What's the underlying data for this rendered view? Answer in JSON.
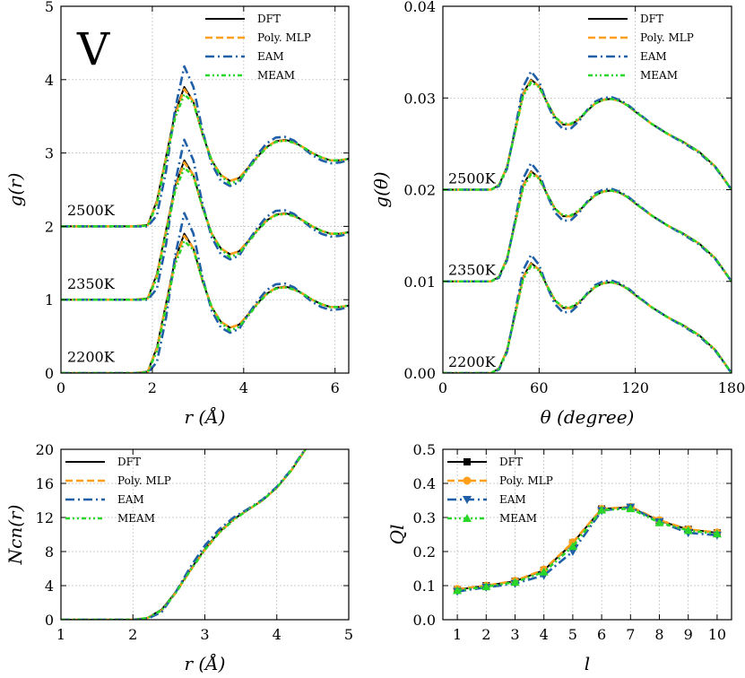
{
  "figure_label": "V",
  "series_styles": [
    {
      "name": "DFT",
      "color": "#000000",
      "dash": "",
      "width": 2.0
    },
    {
      "name": "Poly. MLP",
      "color": "#ff9f1c",
      "dash": "8,4",
      "width": 2.6
    },
    {
      "name": "EAM",
      "color": "#1f5fa8",
      "dash": "10,4,2,4",
      "width": 2.6
    },
    {
      "name": "MEAM",
      "color": "#2bd62b",
      "dash": "5,3,2,3,2,3",
      "width": 2.6
    }
  ],
  "chart_data": [
    {
      "id": "rdf",
      "type": "line",
      "title": "",
      "xlabel": "r (Å)",
      "ylabel": "g(r)",
      "xlim": [
        0,
        6.3
      ],
      "ylim": [
        0,
        5
      ],
      "xticks": [
        "0",
        "2",
        "4",
        "6"
      ],
      "xtick_values": [
        0,
        2,
        4,
        6
      ],
      "yticks": [
        "0",
        "1",
        "2",
        "3",
        "4",
        "5"
      ],
      "ytick_values": [
        0,
        1,
        2,
        3,
        4,
        5
      ],
      "legend": [
        "DFT",
        "Poly. MLP",
        "EAM",
        "MEAM"
      ],
      "legend_position": "top-right",
      "annotations": [
        "2500K",
        "2350K",
        "2200K"
      ],
      "offsets": [
        2,
        1,
        0
      ],
      "series": [
        {
          "name": "DFT",
          "x": [
            0,
            1.6,
            1.9,
            2.1,
            2.3,
            2.5,
            2.7,
            2.9,
            3.1,
            3.3,
            3.5,
            3.7,
            3.9,
            4.1,
            4.3,
            4.5,
            4.7,
            4.9,
            5.1,
            5.3,
            5.5,
            5.7,
            5.9,
            6.1,
            6.3
          ],
          "y": [
            0,
            0,
            0.02,
            0.35,
            0.95,
            1.55,
            1.9,
            1.7,
            1.25,
            0.9,
            0.7,
            0.62,
            0.66,
            0.8,
            0.95,
            1.08,
            1.16,
            1.18,
            1.15,
            1.08,
            1.0,
            0.94,
            0.9,
            0.9,
            0.92
          ]
        },
        {
          "name": "Poly. MLP",
          "x": [
            0,
            1.6,
            1.9,
            2.1,
            2.3,
            2.5,
            2.7,
            2.9,
            3.1,
            3.3,
            3.5,
            3.7,
            3.9,
            4.1,
            4.3,
            4.5,
            4.7,
            4.9,
            5.1,
            5.3,
            5.5,
            5.7,
            5.9,
            6.1,
            6.3
          ],
          "y": [
            0,
            0,
            0.02,
            0.33,
            0.93,
            1.52,
            1.87,
            1.7,
            1.26,
            0.9,
            0.7,
            0.62,
            0.66,
            0.8,
            0.95,
            1.08,
            1.16,
            1.17,
            1.14,
            1.08,
            1.0,
            0.94,
            0.9,
            0.9,
            0.92
          ]
        },
        {
          "name": "EAM",
          "x": [
            0,
            1.6,
            1.9,
            2.1,
            2.3,
            2.5,
            2.7,
            2.9,
            3.1,
            3.3,
            3.5,
            3.7,
            3.9,
            4.1,
            4.3,
            4.5,
            4.7,
            4.9,
            5.1,
            5.3,
            5.5,
            5.7,
            5.9,
            6.1,
            6.3
          ],
          "y": [
            0,
            0,
            0.0,
            0.15,
            0.75,
            1.6,
            2.18,
            1.9,
            1.3,
            0.85,
            0.62,
            0.55,
            0.6,
            0.8,
            0.98,
            1.13,
            1.21,
            1.22,
            1.17,
            1.07,
            0.97,
            0.9,
            0.86,
            0.87,
            0.9
          ]
        },
        {
          "name": "MEAM",
          "x": [
            0,
            1.6,
            1.9,
            2.1,
            2.3,
            2.5,
            2.7,
            2.9,
            3.1,
            3.3,
            3.5,
            3.7,
            3.9,
            4.1,
            4.3,
            4.5,
            4.7,
            4.9,
            5.1,
            5.3,
            5.5,
            5.7,
            5.9,
            6.1,
            6.3
          ],
          "y": [
            0,
            0,
            0.01,
            0.3,
            0.9,
            1.48,
            1.8,
            1.68,
            1.26,
            0.9,
            0.69,
            0.58,
            0.63,
            0.78,
            0.94,
            1.07,
            1.15,
            1.17,
            1.14,
            1.08,
            1.0,
            0.94,
            0.9,
            0.9,
            0.92
          ]
        }
      ]
    },
    {
      "id": "adf",
      "type": "line",
      "title": "",
      "xlabel": "θ (degree)",
      "ylabel": "g(θ)",
      "xlim": [
        0,
        180
      ],
      "ylim": [
        0,
        0.04
      ],
      "xticks": [
        "0",
        "60",
        "120",
        "180"
      ],
      "xtick_values": [
        0,
        60,
        120,
        180
      ],
      "yticks": [
        "0.00",
        "0.01",
        "0.02",
        "0.03",
        "0.04"
      ],
      "ytick_values": [
        0,
        0.01,
        0.02,
        0.03,
        0.04
      ],
      "legend": [
        "DFT",
        "Poly. MLP",
        "EAM",
        "MEAM"
      ],
      "legend_position": "top-right",
      "annotations": [
        "2500K",
        "2350K",
        "2200K"
      ],
      "offsets": [
        0.02,
        0.01,
        0
      ],
      "series": [
        {
          "name": "DFT",
          "x": [
            0,
            30,
            35,
            40,
            45,
            50,
            55,
            60,
            65,
            70,
            75,
            80,
            85,
            90,
            95,
            100,
            105,
            110,
            115,
            120,
            130,
            140,
            150,
            160,
            170,
            180
          ],
          "y": [
            0,
            0,
            0.0005,
            0.0025,
            0.0065,
            0.0105,
            0.012,
            0.0113,
            0.0095,
            0.0079,
            0.0071,
            0.0071,
            0.0077,
            0.0086,
            0.0094,
            0.0098,
            0.0099,
            0.0097,
            0.0092,
            0.0085,
            0.0072,
            0.0061,
            0.0052,
            0.0041,
            0.0025,
            0.0
          ]
        },
        {
          "name": "Poly. MLP",
          "x": [
            0,
            30,
            35,
            40,
            45,
            50,
            55,
            60,
            65,
            70,
            75,
            80,
            85,
            90,
            95,
            100,
            105,
            110,
            115,
            120,
            130,
            140,
            150,
            160,
            170,
            180
          ],
          "y": [
            0,
            0,
            0.0005,
            0.0025,
            0.0064,
            0.0104,
            0.0119,
            0.0113,
            0.0095,
            0.0079,
            0.0071,
            0.0071,
            0.0077,
            0.0086,
            0.0094,
            0.0098,
            0.0099,
            0.0097,
            0.0092,
            0.0085,
            0.0072,
            0.0061,
            0.0052,
            0.0041,
            0.0025,
            0.0
          ]
        },
        {
          "name": "EAM",
          "x": [
            0,
            30,
            35,
            40,
            45,
            50,
            55,
            60,
            65,
            70,
            75,
            80,
            85,
            90,
            95,
            100,
            105,
            110,
            115,
            120,
            130,
            140,
            150,
            160,
            170,
            180
          ],
          "y": [
            0,
            0,
            0.0004,
            0.0023,
            0.0066,
            0.0112,
            0.0129,
            0.0118,
            0.0094,
            0.0075,
            0.0066,
            0.0067,
            0.0075,
            0.0087,
            0.0096,
            0.01,
            0.0101,
            0.0098,
            0.0093,
            0.0086,
            0.0072,
            0.0061,
            0.0051,
            0.004,
            0.0024,
            0.0
          ]
        },
        {
          "name": "MEAM",
          "x": [
            0,
            30,
            35,
            40,
            45,
            50,
            55,
            60,
            65,
            70,
            75,
            80,
            85,
            90,
            95,
            100,
            105,
            110,
            115,
            120,
            130,
            140,
            150,
            160,
            170,
            180
          ],
          "y": [
            0,
            0,
            0.0005,
            0.0024,
            0.0063,
            0.0102,
            0.0117,
            0.0112,
            0.0095,
            0.0079,
            0.0072,
            0.0072,
            0.0078,
            0.0086,
            0.0094,
            0.0098,
            0.0099,
            0.0097,
            0.0092,
            0.0085,
            0.0072,
            0.0061,
            0.0052,
            0.0041,
            0.0025,
            0.0
          ]
        }
      ]
    },
    {
      "id": "ncn",
      "type": "line",
      "title": "",
      "xlabel": "r (Å)",
      "ylabel": "Ncn(r)",
      "xlim": [
        1,
        5
      ],
      "ylim": [
        0,
        20
      ],
      "xticks": [
        "1",
        "2",
        "3",
        "4",
        "5"
      ],
      "xtick_values": [
        1,
        2,
        3,
        4,
        5
      ],
      "yticks": [
        "0",
        "4",
        "8",
        "12",
        "16",
        "20"
      ],
      "ytick_values": [
        0,
        4,
        8,
        12,
        16,
        20
      ],
      "legend": [
        "DFT",
        "Poly. MLP",
        "EAM",
        "MEAM"
      ],
      "legend_position": "top-left",
      "series": [
        {
          "name": "DFT",
          "x": [
            1,
            2.0,
            2.2,
            2.4,
            2.6,
            2.8,
            3.0,
            3.2,
            3.4,
            3.6,
            3.8,
            4.0,
            4.2,
            4.4
          ],
          "y": [
            0,
            0,
            0.2,
            1.2,
            3.3,
            5.9,
            8.3,
            10.3,
            11.8,
            12.9,
            14.0,
            15.5,
            17.5,
            20.0
          ]
        },
        {
          "name": "Poly. MLP",
          "x": [
            1,
            2.0,
            2.2,
            2.4,
            2.6,
            2.8,
            3.0,
            3.2,
            3.4,
            3.6,
            3.8,
            4.0,
            4.2,
            4.4
          ],
          "y": [
            0,
            0,
            0.2,
            1.1,
            3.2,
            5.8,
            8.2,
            10.2,
            11.8,
            12.9,
            14.0,
            15.5,
            17.5,
            20.0
          ]
        },
        {
          "name": "EAM",
          "x": [
            1,
            2.0,
            2.2,
            2.4,
            2.6,
            2.8,
            3.0,
            3.2,
            3.4,
            3.6,
            3.8,
            4.0,
            4.2,
            4.4
          ],
          "y": [
            0,
            0,
            0.1,
            0.9,
            3.3,
            6.2,
            8.7,
            10.6,
            12.0,
            13.0,
            14.1,
            15.6,
            17.6,
            20.1
          ]
        },
        {
          "name": "MEAM",
          "x": [
            1,
            2.0,
            2.2,
            2.4,
            2.6,
            2.8,
            3.0,
            3.2,
            3.4,
            3.6,
            3.8,
            4.0,
            4.2,
            4.4
          ],
          "y": [
            0,
            0,
            0.2,
            1.1,
            3.2,
            5.8,
            8.2,
            10.2,
            11.7,
            12.9,
            14.0,
            15.5,
            17.5,
            20.0
          ]
        }
      ]
    },
    {
      "id": "ql",
      "type": "line",
      "title": "",
      "xlabel": "l",
      "ylabel": "Ql",
      "xlim": [
        0.5,
        10.5
      ],
      "ylim": [
        0,
        0.5
      ],
      "xticks": [
        "1",
        "2",
        "3",
        "4",
        "5",
        "6",
        "7",
        "8",
        "9",
        "10"
      ],
      "xtick_values": [
        1,
        2,
        3,
        4,
        5,
        6,
        7,
        8,
        9,
        10
      ],
      "yticks": [
        "0.0",
        "0.1",
        "0.2",
        "0.3",
        "0.4",
        "0.5"
      ],
      "ytick_values": [
        0,
        0.1,
        0.2,
        0.3,
        0.4,
        0.5
      ],
      "legend": [
        "DFT",
        "Poly. MLP",
        "EAM",
        "MEAM"
      ],
      "legend_position": "top-left",
      "markers": [
        "square",
        "circle",
        "triangle-down",
        "triangle-up"
      ],
      "series": [
        {
          "name": "DFT",
          "x": [
            1,
            2,
            3,
            4,
            5,
            6,
            7,
            8,
            9,
            10
          ],
          "y": [
            0.088,
            0.1,
            0.113,
            0.145,
            0.225,
            0.325,
            0.33,
            0.29,
            0.265,
            0.255
          ]
        },
        {
          "name": "Poly. MLP",
          "x": [
            1,
            2,
            3,
            4,
            5,
            6,
            7,
            8,
            9,
            10
          ],
          "y": [
            0.09,
            0.1,
            0.114,
            0.147,
            0.227,
            0.325,
            0.331,
            0.292,
            0.265,
            0.256
          ]
        },
        {
          "name": "EAM",
          "x": [
            1,
            2,
            3,
            4,
            5,
            6,
            7,
            8,
            9,
            10
          ],
          "y": [
            0.083,
            0.095,
            0.106,
            0.13,
            0.2,
            0.32,
            0.33,
            0.287,
            0.255,
            0.248
          ]
        },
        {
          "name": "MEAM",
          "x": [
            1,
            2,
            3,
            4,
            5,
            6,
            7,
            8,
            9,
            10
          ],
          "y": [
            0.086,
            0.097,
            0.11,
            0.14,
            0.215,
            0.322,
            0.326,
            0.285,
            0.262,
            0.252
          ]
        }
      ]
    }
  ]
}
